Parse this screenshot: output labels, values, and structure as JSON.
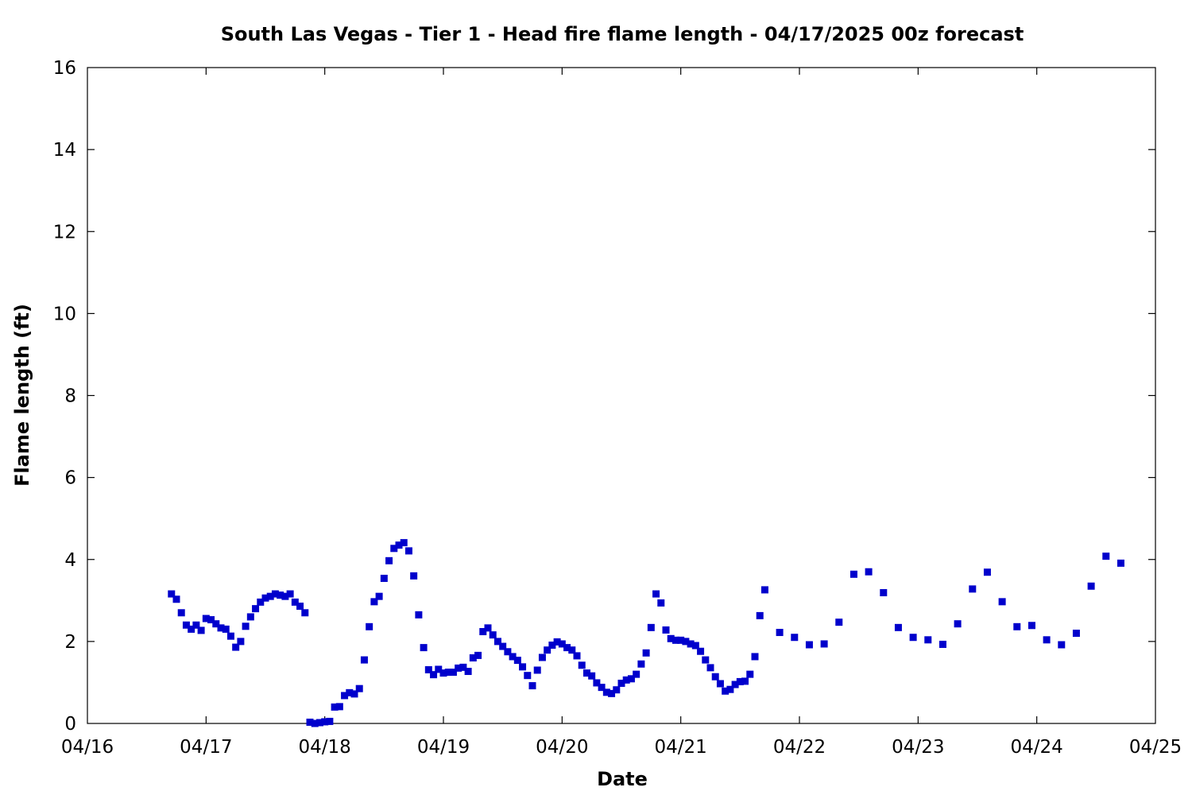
{
  "chart_data": {
    "type": "scatter",
    "title": "South Las Vegas - Tier 1 - Head fire flame length - 04/17/2025 00z forecast",
    "xlabel": "Date",
    "ylabel": "Flame length (ft)",
    "xlim": [
      "2025-04-16 00:00",
      "2025-04-25 00:00"
    ],
    "ylim": [
      0,
      16
    ],
    "x_ticks": [
      "04/16",
      "04/17",
      "04/18",
      "04/19",
      "04/20",
      "04/21",
      "04/22",
      "04/23",
      "04/24",
      "04/25"
    ],
    "y_ticks": [
      "0",
      "2",
      "4",
      "6",
      "8",
      "10",
      "12",
      "14",
      "16"
    ],
    "grid": false,
    "marker": "square",
    "color": "#0000cc",
    "series": [
      {
        "points": [
          [
            "2025-04-16 17:00",
            3.16
          ],
          [
            "2025-04-16 18:00",
            3.03
          ],
          [
            "2025-04-16 19:00",
            2.7
          ],
          [
            "2025-04-16 20:00",
            2.4
          ],
          [
            "2025-04-16 21:00",
            2.3
          ],
          [
            "2025-04-16 22:00",
            2.4
          ],
          [
            "2025-04-16 23:00",
            2.27
          ],
          [
            "2025-04-17 00:00",
            2.56
          ],
          [
            "2025-04-17 01:00",
            2.53
          ],
          [
            "2025-04-17 02:00",
            2.43
          ],
          [
            "2025-04-17 03:00",
            2.33
          ],
          [
            "2025-04-17 04:00",
            2.3
          ],
          [
            "2025-04-17 05:00",
            2.13
          ],
          [
            "2025-04-17 06:00",
            1.86
          ],
          [
            "2025-04-17 07:00",
            2.0
          ],
          [
            "2025-04-17 08:00",
            2.37
          ],
          [
            "2025-04-17 09:00",
            2.6
          ],
          [
            "2025-04-17 10:00",
            2.8
          ],
          [
            "2025-04-17 11:00",
            2.96
          ],
          [
            "2025-04-17 12:00",
            3.06
          ],
          [
            "2025-04-17 13:00",
            3.1
          ],
          [
            "2025-04-17 14:00",
            3.16
          ],
          [
            "2025-04-17 15:00",
            3.13
          ],
          [
            "2025-04-17 16:00",
            3.1
          ],
          [
            "2025-04-17 17:00",
            3.16
          ],
          [
            "2025-04-17 18:00",
            2.96
          ],
          [
            "2025-04-17 19:00",
            2.86
          ],
          [
            "2025-04-17 20:00",
            2.7
          ],
          [
            "2025-04-17 21:00",
            0.03
          ],
          [
            "2025-04-17 22:00",
            0.0
          ],
          [
            "2025-04-17 23:00",
            0.02
          ],
          [
            "2025-04-18 00:00",
            0.04
          ],
          [
            "2025-04-18 01:00",
            0.05
          ],
          [
            "2025-04-18 02:00",
            0.4
          ],
          [
            "2025-04-18 03:00",
            0.41
          ],
          [
            "2025-04-18 04:00",
            0.68
          ],
          [
            "2025-04-18 05:00",
            0.75
          ],
          [
            "2025-04-18 06:00",
            0.72
          ],
          [
            "2025-04-18 07:00",
            0.85
          ],
          [
            "2025-04-18 08:00",
            1.55
          ],
          [
            "2025-04-18 09:00",
            2.36
          ],
          [
            "2025-04-18 10:00",
            2.97
          ],
          [
            "2025-04-18 11:00",
            3.1
          ],
          [
            "2025-04-18 12:00",
            3.54
          ],
          [
            "2025-04-18 13:00",
            3.97
          ],
          [
            "2025-04-18 14:00",
            4.27
          ],
          [
            "2025-04-18 15:00",
            4.35
          ],
          [
            "2025-04-18 16:00",
            4.41
          ],
          [
            "2025-04-18 17:00",
            4.21
          ],
          [
            "2025-04-18 18:00",
            3.6
          ],
          [
            "2025-04-18 19:00",
            2.65
          ],
          [
            "2025-04-18 20:00",
            1.85
          ],
          [
            "2025-04-18 21:00",
            1.31
          ],
          [
            "2025-04-18 22:00",
            1.19
          ],
          [
            "2025-04-18 23:00",
            1.32
          ],
          [
            "2025-04-19 00:00",
            1.23
          ],
          [
            "2025-04-19 01:00",
            1.25
          ],
          [
            "2025-04-19 02:00",
            1.25
          ],
          [
            "2025-04-19 03:00",
            1.35
          ],
          [
            "2025-04-19 04:00",
            1.37
          ],
          [
            "2025-04-19 05:00",
            1.27
          ],
          [
            "2025-04-19 06:00",
            1.6
          ],
          [
            "2025-04-19 07:00",
            1.66
          ],
          [
            "2025-04-19 08:00",
            2.24
          ],
          [
            "2025-04-19 09:00",
            2.33
          ],
          [
            "2025-04-19 10:00",
            2.16
          ],
          [
            "2025-04-19 11:00",
            2.0
          ],
          [
            "2025-04-19 12:00",
            1.88
          ],
          [
            "2025-04-19 13:00",
            1.75
          ],
          [
            "2025-04-19 14:00",
            1.63
          ],
          [
            "2025-04-19 15:00",
            1.54
          ],
          [
            "2025-04-19 16:00",
            1.38
          ],
          [
            "2025-04-19 17:00",
            1.17
          ],
          [
            "2025-04-19 18:00",
            0.92
          ],
          [
            "2025-04-19 19:00",
            1.3
          ],
          [
            "2025-04-19 20:00",
            1.61
          ],
          [
            "2025-04-19 21:00",
            1.79
          ],
          [
            "2025-04-19 22:00",
            1.91
          ],
          [
            "2025-04-19 23:00",
            1.99
          ],
          [
            "2025-04-20 00:00",
            1.94
          ],
          [
            "2025-04-20 01:00",
            1.85
          ],
          [
            "2025-04-20 02:00",
            1.79
          ],
          [
            "2025-04-20 03:00",
            1.65
          ],
          [
            "2025-04-20 04:00",
            1.42
          ],
          [
            "2025-04-20 05:00",
            1.23
          ],
          [
            "2025-04-20 06:00",
            1.16
          ],
          [
            "2025-04-20 07:00",
            0.99
          ],
          [
            "2025-04-20 08:00",
            0.88
          ],
          [
            "2025-04-20 09:00",
            0.76
          ],
          [
            "2025-04-20 10:00",
            0.73
          ],
          [
            "2025-04-20 11:00",
            0.82
          ],
          [
            "2025-04-20 12:00",
            0.98
          ],
          [
            "2025-04-20 13:00",
            1.06
          ],
          [
            "2025-04-20 14:00",
            1.09
          ],
          [
            "2025-04-20 15:00",
            1.2
          ],
          [
            "2025-04-20 16:00",
            1.45
          ],
          [
            "2025-04-20 17:00",
            1.72
          ],
          [
            "2025-04-20 18:00",
            2.34
          ],
          [
            "2025-04-20 19:00",
            3.16
          ],
          [
            "2025-04-20 20:00",
            2.94
          ],
          [
            "2025-04-20 21:00",
            2.28
          ],
          [
            "2025-04-20 22:00",
            2.07
          ],
          [
            "2025-04-20 23:00",
            2.03
          ],
          [
            "2025-04-21 00:00",
            2.03
          ],
          [
            "2025-04-21 01:00",
            2.0
          ],
          [
            "2025-04-21 02:00",
            1.94
          ],
          [
            "2025-04-21 03:00",
            1.9
          ],
          [
            "2025-04-21 04:00",
            1.76
          ],
          [
            "2025-04-21 05:00",
            1.55
          ],
          [
            "2025-04-21 06:00",
            1.36
          ],
          [
            "2025-04-21 07:00",
            1.14
          ],
          [
            "2025-04-21 08:00",
            0.97
          ],
          [
            "2025-04-21 09:00",
            0.79
          ],
          [
            "2025-04-21 10:00",
            0.83
          ],
          [
            "2025-04-21 11:00",
            0.95
          ],
          [
            "2025-04-21 12:00",
            1.02
          ],
          [
            "2025-04-21 13:00",
            1.03
          ],
          [
            "2025-04-21 14:00",
            1.2
          ],
          [
            "2025-04-21 15:00",
            1.63
          ],
          [
            "2025-04-21 16:00",
            2.63
          ],
          [
            "2025-04-21 17:00",
            3.26
          ],
          [
            "2025-04-21 20:00",
            2.22
          ],
          [
            "2025-04-21 23:00",
            2.1
          ],
          [
            "2025-04-22 02:00",
            1.92
          ],
          [
            "2025-04-22 05:00",
            1.94
          ],
          [
            "2025-04-22 08:00",
            2.47
          ],
          [
            "2025-04-22 11:00",
            3.64
          ],
          [
            "2025-04-22 14:00",
            3.7
          ],
          [
            "2025-04-22 17:00",
            3.19
          ],
          [
            "2025-04-22 20:00",
            2.34
          ],
          [
            "2025-04-22 23:00",
            2.1
          ],
          [
            "2025-04-23 02:00",
            2.04
          ],
          [
            "2025-04-23 05:00",
            1.93
          ],
          [
            "2025-04-23 08:00",
            2.43
          ],
          [
            "2025-04-23 11:00",
            3.28
          ],
          [
            "2025-04-23 14:00",
            3.69
          ],
          [
            "2025-04-23 17:00",
            2.97
          ],
          [
            "2025-04-23 20:00",
            2.36
          ],
          [
            "2025-04-23 23:00",
            2.39
          ],
          [
            "2025-04-24 02:00",
            2.04
          ],
          [
            "2025-04-24 05:00",
            1.92
          ],
          [
            "2025-04-24 08:00",
            2.2
          ],
          [
            "2025-04-24 11:00",
            3.35
          ],
          [
            "2025-04-24 14:00",
            4.08
          ],
          [
            "2025-04-24 17:00",
            3.91
          ]
        ]
      }
    ]
  }
}
